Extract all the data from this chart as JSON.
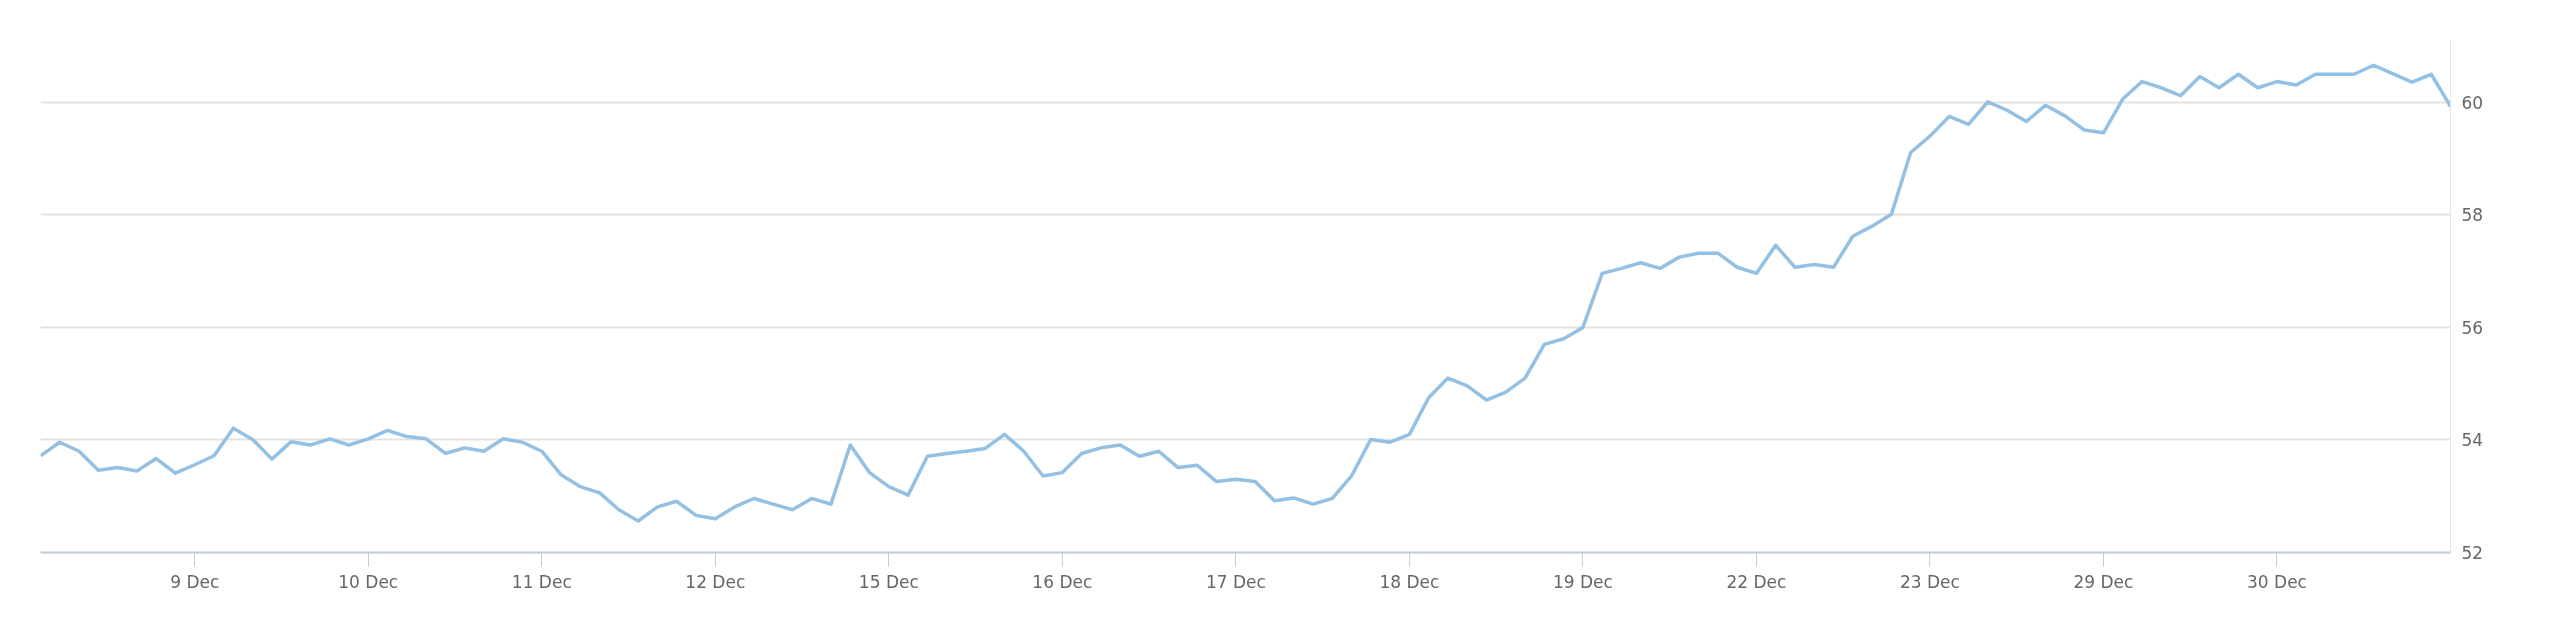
{
  "chart_data": {
    "type": "line",
    "categories": [
      null,
      null,
      null,
      null,
      null,
      null,
      null,
      null,
      "9 Dec",
      null,
      null,
      null,
      null,
      null,
      null,
      null,
      null,
      "10 Dec",
      null,
      null,
      null,
      null,
      null,
      null,
      null,
      null,
      "11 Dec",
      null,
      null,
      null,
      null,
      null,
      null,
      null,
      null,
      "12 Dec",
      null,
      null,
      null,
      null,
      null,
      null,
      null,
      null,
      "15 Dec",
      null,
      null,
      null,
      null,
      null,
      null,
      null,
      null,
      "16 Dec",
      null,
      null,
      null,
      null,
      null,
      null,
      null,
      null,
      "17 Dec",
      null,
      null,
      null,
      null,
      null,
      null,
      null,
      null,
      "18 Dec",
      null,
      null,
      null,
      null,
      null,
      null,
      null,
      null,
      "19 Dec",
      null,
      null,
      null,
      null,
      null,
      null,
      null,
      null,
      "22 Dec",
      null,
      null,
      null,
      null,
      null,
      null,
      null,
      null,
      "23 Dec",
      null,
      null,
      null,
      null,
      null,
      null,
      null,
      null,
      "29 Dec",
      null,
      null,
      null,
      null,
      null,
      null,
      null,
      null,
      "30 Dec",
      null,
      null,
      null,
      null,
      null,
      null,
      null,
      null,
      null
    ],
    "series": [
      {
        "color": "#94c0e3",
        "values": [
          53.72,
          53.96,
          53.8,
          53.46,
          53.51,
          53.45,
          53.67,
          53.41,
          53.56,
          53.72,
          54.21,
          54.01,
          53.66,
          53.97,
          53.91,
          54.02,
          53.91,
          54.02,
          54.17,
          54.06,
          54.02,
          53.76,
          53.86,
          53.8,
          54.02,
          53.96,
          53.8,
          53.38,
          53.17,
          53.06,
          52.76,
          52.56,
          52.81,
          52.91,
          52.66,
          52.6,
          52.81,
          52.96,
          52.86,
          52.76,
          52.96,
          52.86,
          53.91,
          53.42,
          53.17,
          53.02,
          53.71,
          53.76,
          53.8,
          53.85,
          54.1,
          53.8,
          53.36,
          53.42,
          53.76,
          53.86,
          53.91,
          53.71,
          53.8,
          53.51,
          53.55,
          53.26,
          53.3,
          53.26,
          52.92,
          52.97,
          52.86,
          52.96,
          53.36,
          54.01,
          53.96,
          54.1,
          54.75,
          55.1,
          54.96,
          54.71,
          54.85,
          55.1,
          55.7,
          55.8,
          56.0,
          56.96,
          57.05,
          57.15,
          57.05,
          57.25,
          57.32,
          57.32,
          57.07,
          56.96,
          57.46,
          57.07,
          57.12,
          57.07,
          57.62,
          57.8,
          58.01,
          59.11,
          59.4,
          59.75,
          59.61,
          60.01,
          59.86,
          59.66,
          59.95,
          59.76,
          59.51,
          59.46,
          60.06,
          60.37,
          60.26,
          60.12,
          60.46,
          60.26,
          60.5,
          60.26,
          60.37,
          60.31,
          60.5,
          60.5,
          60.5,
          60.66,
          60.51,
          60.36,
          60.5,
          59.93
        ]
      }
    ],
    "ylim": [
      52,
      61.1
    ],
    "yticks": [
      52,
      54,
      56,
      58,
      60
    ],
    "grid": "y",
    "marker": "none",
    "line_style": "solid"
  }
}
